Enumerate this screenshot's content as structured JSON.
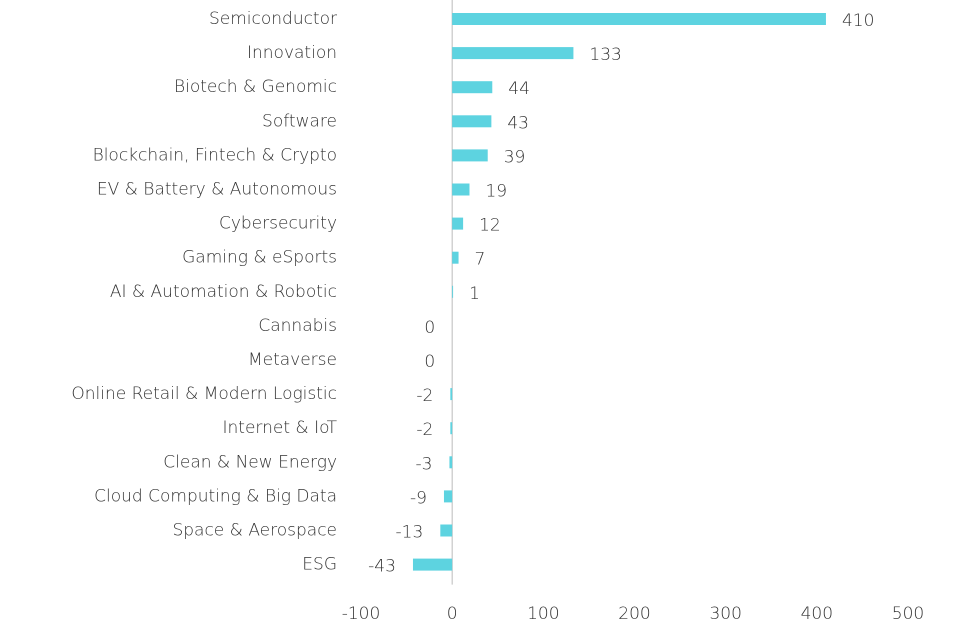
{
  "chart_data": {
    "type": "bar",
    "orientation": "horizontal",
    "categories": [
      "Semiconductor",
      "Innovation",
      "Biotech & Genomic",
      "Software",
      "Blockchain, Fintech & Crypto",
      "EV & Battery & Autonomous",
      "Cybersecurity",
      "Gaming & eSports",
      "AI & Automation & Robotic",
      "Cannabis",
      "Metaverse",
      "Online Retail & Modern Logistic",
      "Internet & IoT",
      "Clean & New Energy",
      "Cloud Computing & Big Data",
      "Space & Aerospace",
      "ESG"
    ],
    "values": [
      410,
      133,
      44,
      43,
      39,
      19,
      12,
      7,
      1,
      0,
      0,
      -2,
      -2,
      -3,
      -9,
      -13,
      -43
    ],
    "color": "#5dd3e0",
    "xlim": [
      -100,
      500
    ],
    "xticks": [
      -100,
      0,
      100,
      200,
      300,
      400,
      500
    ]
  }
}
